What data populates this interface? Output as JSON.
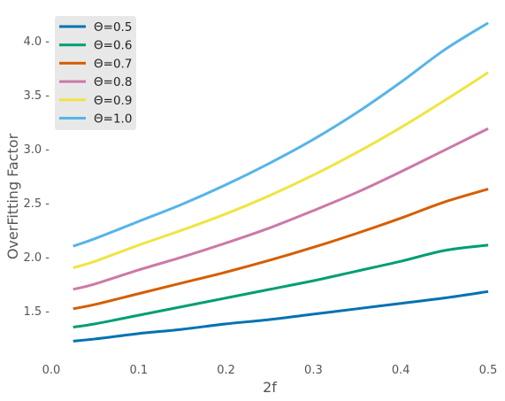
{
  "chart_data": {
    "type": "line",
    "xlabel": "2f",
    "ylabel": "OverFitting Factor",
    "xlim": [
      0.0,
      0.5
    ],
    "ylim": [
      1.1,
      4.3
    ],
    "x_ticks": [
      0.0,
      0.1,
      0.2,
      0.3,
      0.4,
      0.5
    ],
    "x_tick_labels": [
      "0.0",
      "0.1",
      "0.2",
      "0.3",
      "0.4",
      "0.5"
    ],
    "y_ticks": [
      1.5,
      2.0,
      2.5,
      3.0,
      3.5,
      4.0
    ],
    "y_tick_labels": [
      "1.5 -",
      "2.0 -",
      "2.5 -",
      "3.0 -",
      "3.5 -",
      "4.0 -"
    ],
    "grid": false,
    "legend_position": "top-left",
    "x": [
      0.025,
      0.05,
      0.1,
      0.15,
      0.2,
      0.25,
      0.3,
      0.35,
      0.4,
      0.45,
      0.5
    ],
    "series": [
      {
        "name": "Θ=0.5",
        "color": "#0072b2",
        "values": [
          1.22,
          1.24,
          1.29,
          1.33,
          1.38,
          1.42,
          1.47,
          1.52,
          1.57,
          1.62,
          1.68
        ]
      },
      {
        "name": "Θ=0.6",
        "color": "#009e73",
        "values": [
          1.35,
          1.38,
          1.46,
          1.54,
          1.62,
          1.7,
          1.78,
          1.87,
          1.96,
          2.06,
          2.11
        ]
      },
      {
        "name": "Θ=0.7",
        "color": "#d55e00",
        "values": [
          1.52,
          1.56,
          1.66,
          1.76,
          1.86,
          1.97,
          2.09,
          2.22,
          2.36,
          2.51,
          2.63
        ]
      },
      {
        "name": "Θ=0.8",
        "color": "#cc79a7",
        "values": [
          1.7,
          1.75,
          1.88,
          2.0,
          2.13,
          2.27,
          2.43,
          2.6,
          2.79,
          2.99,
          3.19
        ]
      },
      {
        "name": "Θ=0.9",
        "color": "#f0e442",
        "values": [
          1.9,
          1.96,
          2.11,
          2.25,
          2.4,
          2.57,
          2.76,
          2.97,
          3.2,
          3.45,
          3.71
        ]
      },
      {
        "name": "Θ=1.0",
        "color": "#56b4e9",
        "values": [
          2.1,
          2.17,
          2.33,
          2.49,
          2.67,
          2.87,
          3.09,
          3.34,
          3.62,
          3.92,
          4.17
        ]
      }
    ]
  }
}
